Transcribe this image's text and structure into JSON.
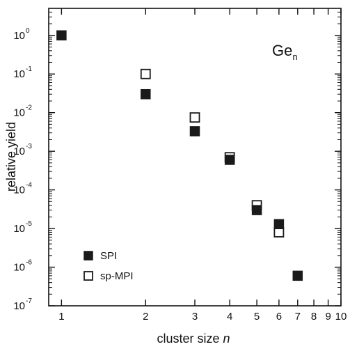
{
  "chart_data": {
    "type": "scatter",
    "xlabel": "cluster size",
    "xlabel_var": "n",
    "ylabel": "relative yield",
    "xscale": "log",
    "yscale": "log",
    "xlim": [
      0.9,
      10
    ],
    "ylim": [
      1e-07,
      5
    ],
    "x_ticks": [
      1,
      2,
      3,
      4,
      5,
      6,
      7,
      8,
      9,
      10
    ],
    "x_tick_labels": [
      "1",
      "2",
      "3",
      "4",
      "5",
      "6",
      "7",
      "8",
      "9",
      "10"
    ],
    "y_ticks": [
      {
        "base": "10",
        "exp": "0",
        "value": 1
      },
      {
        "base": "10",
        "exp": "-1",
        "value": 0.1
      },
      {
        "base": "10",
        "exp": "-2",
        "value": 0.01
      },
      {
        "base": "10",
        "exp": "-3",
        "value": 0.001
      },
      {
        "base": "10",
        "exp": "-4",
        "value": 0.0001
      },
      {
        "base": "10",
        "exp": "-5",
        "value": 1e-05
      },
      {
        "base": "10",
        "exp": "-6",
        "value": 1e-06
      },
      {
        "base": "10",
        "exp": "-7",
        "value": 1e-07
      }
    ],
    "annotation": {
      "text": "Ge",
      "sub": "n"
    },
    "legend_position": "bottom-left",
    "series": [
      {
        "name": "SPI",
        "marker": "filled-square",
        "color": "#1a1a1a",
        "points": [
          {
            "x": 1,
            "y": 1.0
          },
          {
            "x": 2,
            "y": 0.03
          },
          {
            "x": 3,
            "y": 0.0033
          },
          {
            "x": 4,
            "y": 0.0006
          },
          {
            "x": 5,
            "y": 3e-05
          },
          {
            "x": 6,
            "y": 1.3e-05
          },
          {
            "x": 7,
            "y": 6e-07
          }
        ]
      },
      {
        "name": "sp-MPI",
        "marker": "open-square",
        "color": "#1a1a1a",
        "points": [
          {
            "x": 2,
            "y": 0.1
          },
          {
            "x": 3,
            "y": 0.0075
          },
          {
            "x": 4,
            "y": 0.0007
          },
          {
            "x": 5,
            "y": 4e-05
          },
          {
            "x": 6,
            "y": 8e-06
          }
        ]
      }
    ]
  }
}
